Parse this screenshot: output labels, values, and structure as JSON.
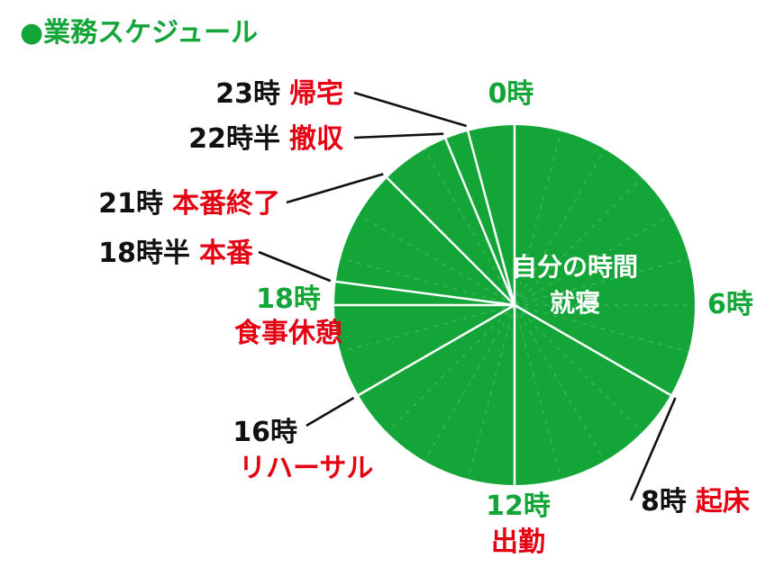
{
  "title": "●業務スケジュール",
  "colors": {
    "pie": "#13a538",
    "slice_line": "#ffffff",
    "grid_line": "#3eb85c",
    "hour_label": "#13a538",
    "event_label": "#e50012",
    "time_label": "#111111",
    "leader": "#111111",
    "inner_text": "#ffffff",
    "title": "#13a538"
  },
  "chart_data": {
    "type": "pie",
    "title": "●業務スケジュール",
    "unit": "hours (24h clock)",
    "clock_labels": [
      {
        "hour": 0,
        "text": "0時"
      },
      {
        "hour": 6,
        "text": "6時"
      },
      {
        "hour": 12,
        "text": "12時",
        "event": "出勤"
      },
      {
        "hour": 18,
        "text": "18時",
        "event": "食事休憩"
      }
    ],
    "events": [
      {
        "hour": 8,
        "time": "8時",
        "event": "起床"
      },
      {
        "hour": 16,
        "time": "16時",
        "event": "リハーサル"
      },
      {
        "hour": 18.5,
        "time": "18時半",
        "event": "本番"
      },
      {
        "hour": 21,
        "time": "21時",
        "event": "本番終了"
      },
      {
        "hour": 22.5,
        "time": "22時半",
        "event": "撤収"
      },
      {
        "hour": 23,
        "time": "23時",
        "event": "帰宅"
      }
    ],
    "boundaries": [
      0,
      8,
      12,
      16,
      18,
      18.5,
      21,
      22.5,
      23
    ],
    "center_text": [
      "自分の時間",
      "就寝"
    ]
  }
}
